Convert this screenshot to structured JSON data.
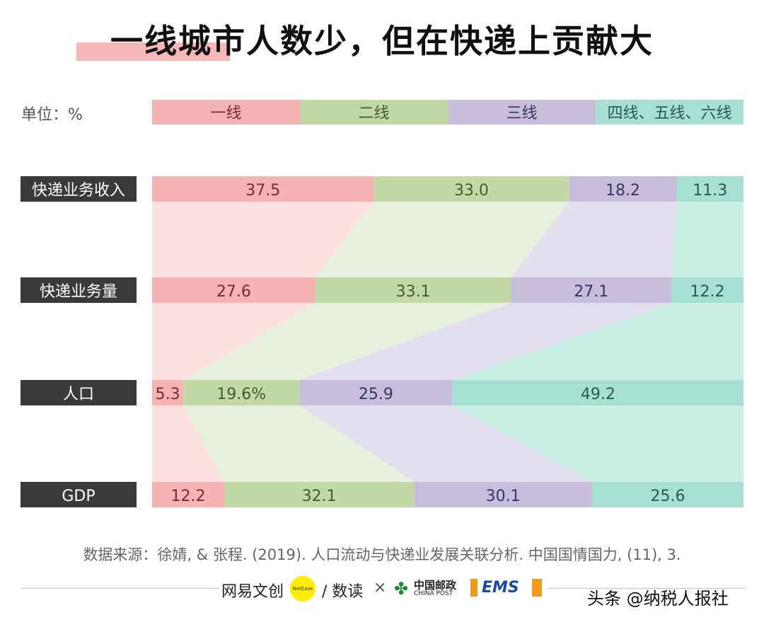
{
  "title": "一线城市人数少，但在快递上贡献大",
  "unit": "单位：%",
  "colors": {
    "solid": [
      "#f5b3b3",
      "#c2d9a5",
      "#c7bedb",
      "#a5e0d0"
    ],
    "light": [
      "#fde0e0",
      "#e7f0dd",
      "#e3dfee",
      "#c9eee3"
    ],
    "text": [
      "#7a2a30",
      "#4a5a30",
      "#3a3560",
      "#2a5a50"
    ]
  },
  "chart_data": {
    "type": "bar",
    "stacked": true,
    "orientation": "horizontal",
    "legend": [
      "一线",
      "二线",
      "三线",
      "四线、五线、六线"
    ],
    "categories": [
      "快递业务收入",
      "快递业务量",
      "人口",
      "GDP"
    ],
    "series": [
      {
        "name": "一线",
        "values": [
          37.5,
          27.6,
          5.3,
          12.2
        ],
        "labels": [
          "37.5",
          "27.6",
          "5.3",
          "12.2"
        ]
      },
      {
        "name": "二线",
        "values": [
          33.0,
          33.1,
          19.6,
          32.1
        ],
        "labels": [
          "33.0",
          "33.1",
          "19.6%",
          "32.1"
        ]
      },
      {
        "name": "三线",
        "values": [
          18.2,
          27.1,
          25.9,
          30.1
        ],
        "labels": [
          "18.2",
          "27.1",
          "25.9",
          "30.1"
        ]
      },
      {
        "name": "四线、五线、六线",
        "values": [
          11.3,
          12.2,
          49.2,
          25.6
        ],
        "labels": [
          "11.3",
          "12.2",
          "49.2",
          "25.6"
        ]
      }
    ],
    "xlim": [
      0,
      100
    ]
  },
  "source": "数据来源：徐婧, & 张程. (2019). 人口流动与快递业发展关联分析. 中国国情国力, (11), 3.",
  "footer": {
    "brand1": "网易文创",
    "brand1_badge": "NetEase",
    "brand2": "/ 数读",
    "times": "×",
    "post": "中国邮政",
    "post_en": "CHINA POST",
    "ems": "EMS",
    "watermark": "头条 @纳税人报社"
  }
}
